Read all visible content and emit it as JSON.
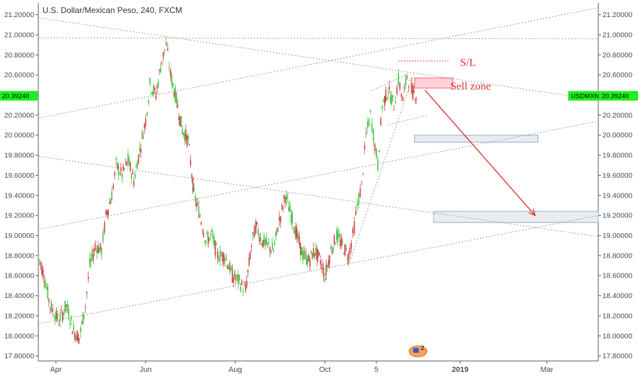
{
  "header": {
    "title": "U.S. Dollar/Mexican Peso, 240, FXCM"
  },
  "chart_data": {
    "type": "candlestick",
    "title": "U.S. Dollar/Mexican Peso, 240, FXCM",
    "ylim": [
      17.75,
      21.32
    ],
    "y_ticks": [
      "17.80000",
      "18.00000",
      "18.20000",
      "18.40000",
      "18.60000",
      "18.80000",
      "19.00000",
      "19.20000",
      "19.40000",
      "19.60000",
      "19.80000",
      "20.00000",
      "20.20000",
      "20.40000",
      "20.60000",
      "20.80000",
      "21.00000",
      "21.20000"
    ],
    "x_ticks": [
      {
        "label": "Apr",
        "date": "2018-04-01"
      },
      {
        "label": "Jun",
        "date": "2018-06-01"
      },
      {
        "label": "Aug",
        "date": "2018-08-01"
      },
      {
        "label": "Oct",
        "date": "2018-10-01"
      },
      {
        "label": "5",
        "date": "2018-11-05"
      },
      {
        "label": "2019",
        "date": "2019-01-01",
        "bold": true
      },
      {
        "label": "Mar",
        "date": "2019-03-01"
      }
    ],
    "x_range": [
      "2018-03-20",
      "2019-04-05"
    ],
    "current_price": {
      "label_left": "20.39240",
      "label_right": "20.39240",
      "symbol": "USDMXN",
      "value": 20.3924
    },
    "price_path": [
      {
        "date": "2018-03-20",
        "y": 18.8
      },
      {
        "date": "2018-03-24",
        "y": 18.6
      },
      {
        "date": "2018-03-28",
        "y": 18.3
      },
      {
        "date": "2018-04-03",
        "y": 18.15
      },
      {
        "date": "2018-04-08",
        "y": 18.3
      },
      {
        "date": "2018-04-13",
        "y": 18.05
      },
      {
        "date": "2018-04-17",
        "y": 17.98
      },
      {
        "date": "2018-04-21",
        "y": 18.3
      },
      {
        "date": "2018-04-24",
        "y": 18.7
      },
      {
        "date": "2018-04-28",
        "y": 18.9
      },
      {
        "date": "2018-05-02",
        "y": 18.85
      },
      {
        "date": "2018-05-05",
        "y": 19.2
      },
      {
        "date": "2018-05-09",
        "y": 19.4
      },
      {
        "date": "2018-05-12",
        "y": 19.7
      },
      {
        "date": "2018-05-16",
        "y": 19.6
      },
      {
        "date": "2018-05-20",
        "y": 19.75
      },
      {
        "date": "2018-05-24",
        "y": 19.55
      },
      {
        "date": "2018-05-28",
        "y": 19.85
      },
      {
        "date": "2018-06-01",
        "y": 20.15
      },
      {
        "date": "2018-06-04",
        "y": 20.5
      },
      {
        "date": "2018-06-08",
        "y": 20.4
      },
      {
        "date": "2018-06-12",
        "y": 20.75
      },
      {
        "date": "2018-06-15",
        "y": 20.9
      },
      {
        "date": "2018-06-18",
        "y": 20.6
      },
      {
        "date": "2018-06-22",
        "y": 20.35
      },
      {
        "date": "2018-06-26",
        "y": 20.05
      },
      {
        "date": "2018-06-30",
        "y": 19.95
      },
      {
        "date": "2018-07-04",
        "y": 19.4
      },
      {
        "date": "2018-07-08",
        "y": 19.2
      },
      {
        "date": "2018-07-12",
        "y": 18.95
      },
      {
        "date": "2018-07-16",
        "y": 19.0
      },
      {
        "date": "2018-07-20",
        "y": 18.8
      },
      {
        "date": "2018-07-25",
        "y": 18.8
      },
      {
        "date": "2018-07-30",
        "y": 18.6
      },
      {
        "date": "2018-08-03",
        "y": 18.55
      },
      {
        "date": "2018-08-08",
        "y": 18.45
      },
      {
        "date": "2018-08-12",
        "y": 18.9
      },
      {
        "date": "2018-08-15",
        "y": 19.1
      },
      {
        "date": "2018-08-19",
        "y": 18.95
      },
      {
        "date": "2018-08-23",
        "y": 18.9
      },
      {
        "date": "2018-08-27",
        "y": 18.85
      },
      {
        "date": "2018-08-31",
        "y": 19.15
      },
      {
        "date": "2018-09-04",
        "y": 19.4
      },
      {
        "date": "2018-09-08",
        "y": 19.2
      },
      {
        "date": "2018-09-12",
        "y": 19.0
      },
      {
        "date": "2018-09-16",
        "y": 18.8
      },
      {
        "date": "2018-09-20",
        "y": 18.75
      },
      {
        "date": "2018-09-24",
        "y": 18.85
      },
      {
        "date": "2018-09-28",
        "y": 18.75
      },
      {
        "date": "2018-10-01",
        "y": 18.6
      },
      {
        "date": "2018-10-05",
        "y": 18.85
      },
      {
        "date": "2018-10-09",
        "y": 19.0
      },
      {
        "date": "2018-10-13",
        "y": 18.9
      },
      {
        "date": "2018-10-17",
        "y": 18.8
      },
      {
        "date": "2018-10-20",
        "y": 19.0
      },
      {
        "date": "2018-10-23",
        "y": 19.3
      },
      {
        "date": "2018-10-26",
        "y": 19.5
      },
      {
        "date": "2018-10-29",
        "y": 20.0
      },
      {
        "date": "2018-11-01",
        "y": 20.2
      },
      {
        "date": "2018-11-04",
        "y": 19.9
      },
      {
        "date": "2018-11-06",
        "y": 19.7
      },
      {
        "date": "2018-11-09",
        "y": 20.3
      },
      {
        "date": "2018-11-13",
        "y": 20.45
      },
      {
        "date": "2018-11-17",
        "y": 20.3
      },
      {
        "date": "2018-11-20",
        "y": 20.55
      },
      {
        "date": "2018-11-23",
        "y": 20.35
      },
      {
        "date": "2018-11-26",
        "y": 20.6
      },
      {
        "date": "2018-11-29",
        "y": 20.45
      },
      {
        "date": "2018-12-03",
        "y": 20.39
      }
    ],
    "trendlines": [
      {
        "name": "upper-channel-top",
        "from": {
          "date": "2018-03-20",
          "y": 20.17
        },
        "to": {
          "date": "2019-04-05",
          "y": 21.27
        }
      },
      {
        "name": "falling-line-top",
        "from": {
          "date": "2018-03-20",
          "y": 21.17
        },
        "to": {
          "date": "2019-04-05",
          "y": 20.35
        }
      },
      {
        "name": "horizontal-21",
        "from": {
          "date": "2018-03-20",
          "y": 20.97
        },
        "to": {
          "date": "2019-04-05",
          "y": 20.96
        }
      },
      {
        "name": "middle-channel",
        "from": {
          "date": "2018-03-20",
          "y": 19.06
        },
        "to": {
          "date": "2019-04-05",
          "y": 20.14
        }
      },
      {
        "name": "falling-line-mid",
        "from": {
          "date": "2018-03-20",
          "y": 19.79
        },
        "to": {
          "date": "2019-04-05",
          "y": 18.99
        }
      },
      {
        "name": "lower-channel",
        "from": {
          "date": "2018-03-20",
          "y": 18.12
        },
        "to": {
          "date": "2019-04-05",
          "y": 19.2
        }
      },
      {
        "name": "steep-support",
        "from": {
          "date": "2018-10-18",
          "y": 18.74
        },
        "to": {
          "date": "2018-12-01",
          "y": 20.63
        }
      },
      {
        "name": "wedge-top",
        "from": {
          "date": "2018-11-01",
          "y": 20.44
        },
        "to": {
          "date": "2018-11-28",
          "y": 20.62
        }
      },
      {
        "name": "wedge-bottom",
        "from": {
          "date": "2018-11-12",
          "y": 20.1
        },
        "to": {
          "date": "2018-12-10",
          "y": 20.2
        }
      }
    ],
    "annotations": [
      {
        "text": "S/L",
        "y": 20.73
      },
      {
        "text": "Sell zone",
        "y": 20.47
      }
    ],
    "zones": [
      {
        "name": "sell-zone",
        "from_date": "2018-12-01",
        "to_date": "2018-12-27",
        "y_low": 20.47,
        "y_high": 20.57,
        "color": "#ffd2d7",
        "border": "#f08a96"
      },
      {
        "name": "target-zone-1",
        "from_date": "2018-12-01",
        "to_date": "2019-02-23",
        "y_low": 19.93,
        "y_high": 20.0,
        "color": "#ececec",
        "border": "#a8c4e6"
      },
      {
        "name": "target-zone-2",
        "from_date": "2018-12-14",
        "to_date": "2019-04-05",
        "y_low": 19.13,
        "y_high": 19.24,
        "color": "#ececec",
        "border": "#a8c4e6"
      }
    ],
    "stop_loss_line": {
      "from_date": "2018-11-20",
      "to_date": "2018-12-24",
      "y": 20.74
    },
    "arrow": {
      "from": {
        "date": "2018-12-08",
        "y": 20.45
      },
      "to": {
        "date": "2019-02-21",
        "y": 19.2
      }
    },
    "colors": {
      "up": "#26a69a",
      "down": "#ef5350",
      "bullish_body": "#3fc23f",
      "bearish_body": "#c8403d",
      "grid_line": "#8c8c8c",
      "price_tag": "#1bf21b",
      "annotation": "#e03030"
    },
    "marker_badge": {
      "text": "2",
      "date": "2018-12-01"
    }
  }
}
